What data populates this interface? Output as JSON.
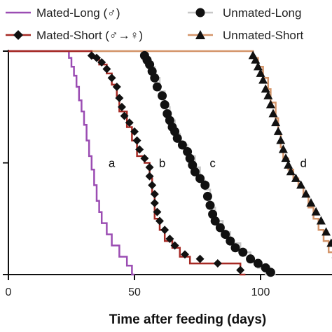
{
  "chart_data": {
    "type": "line",
    "xlabel": "Time after feeding (days)",
    "ylabel": "",
    "xlim": [
      0,
      130
    ],
    "ylim": [
      0,
      1
    ],
    "xticks": [
      "0",
      "50",
      "100"
    ],
    "xtick_values": [
      0,
      50,
      100
    ],
    "ytick_values": [
      0,
      0.5,
      1
    ],
    "legend": {
      "placement": "top",
      "columns": 2
    },
    "series": [
      {
        "name": "Mated-Long (♂)",
        "color": "#9b4db3",
        "marker": "none",
        "steps": [
          [
            0,
            1.0
          ],
          [
            24,
            1.0
          ],
          [
            24,
            0.97
          ],
          [
            25,
            0.97
          ],
          [
            25,
            0.93
          ],
          [
            26,
            0.93
          ],
          [
            26,
            0.89
          ],
          [
            27,
            0.89
          ],
          [
            27,
            0.84
          ],
          [
            28,
            0.84
          ],
          [
            28,
            0.78
          ],
          [
            29,
            0.78
          ],
          [
            29,
            0.73
          ],
          [
            30,
            0.73
          ],
          [
            30,
            0.67
          ],
          [
            31,
            0.67
          ],
          [
            31,
            0.6
          ],
          [
            32,
            0.6
          ],
          [
            32,
            0.53
          ],
          [
            33,
            0.53
          ],
          [
            33,
            0.47
          ],
          [
            34,
            0.47
          ],
          [
            34,
            0.4
          ],
          [
            35,
            0.4
          ],
          [
            35,
            0.33
          ],
          [
            36,
            0.33
          ],
          [
            36,
            0.28
          ],
          [
            37,
            0.28
          ],
          [
            37,
            0.23
          ],
          [
            39,
            0.23
          ],
          [
            39,
            0.18
          ],
          [
            41,
            0.18
          ],
          [
            41,
            0.13
          ],
          [
            44,
            0.13
          ],
          [
            44,
            0.08
          ],
          [
            47,
            0.08
          ],
          [
            47,
            0.04
          ],
          [
            49,
            0.04
          ],
          [
            49,
            0.0
          ],
          [
            50,
            0.0
          ]
        ],
        "points": []
      },
      {
        "name": "Mated-Short (♂→♀)",
        "color": "#a62a24",
        "marker": "diamond",
        "steps": [
          [
            0,
            1.0
          ],
          [
            33,
            1.0
          ],
          [
            33,
            0.97
          ],
          [
            36,
            0.97
          ],
          [
            36,
            0.94
          ],
          [
            39,
            0.94
          ],
          [
            39,
            0.9
          ],
          [
            41,
            0.9
          ],
          [
            41,
            0.85
          ],
          [
            43,
            0.85
          ],
          [
            43,
            0.8
          ],
          [
            44,
            0.8
          ],
          [
            44,
            0.73
          ],
          [
            47,
            0.73
          ],
          [
            47,
            0.66
          ],
          [
            49,
            0.66
          ],
          [
            49,
            0.6
          ],
          [
            51,
            0.6
          ],
          [
            51,
            0.53
          ],
          [
            54,
            0.53
          ],
          [
            54,
            0.5
          ],
          [
            56,
            0.5
          ],
          [
            56,
            0.43
          ],
          [
            57,
            0.43
          ],
          [
            57,
            0.36
          ],
          [
            58,
            0.36
          ],
          [
            58,
            0.25
          ],
          [
            60,
            0.25
          ],
          [
            60,
            0.2
          ],
          [
            62,
            0.2
          ],
          [
            62,
            0.15
          ],
          [
            65,
            0.15
          ],
          [
            65,
            0.12
          ],
          [
            68,
            0.12
          ],
          [
            68,
            0.08
          ],
          [
            72,
            0.08
          ],
          [
            72,
            0.05
          ],
          [
            82,
            0.05
          ],
          [
            82,
            0.05
          ],
          [
            92,
            0.05
          ],
          [
            92,
            0.0
          ],
          [
            94,
            0.0
          ]
        ],
        "points": [
          [
            33,
            0.98
          ],
          [
            35,
            0.97
          ],
          [
            37,
            0.95
          ],
          [
            39,
            0.92
          ],
          [
            41,
            0.88
          ],
          [
            43,
            0.84
          ],
          [
            44,
            0.79
          ],
          [
            45,
            0.75
          ],
          [
            46,
            0.71
          ],
          [
            48,
            0.68
          ],
          [
            50,
            0.64
          ],
          [
            51,
            0.6
          ],
          [
            52,
            0.56
          ],
          [
            54,
            0.52
          ],
          [
            56,
            0.48
          ],
          [
            56,
            0.44
          ],
          [
            57,
            0.4
          ],
          [
            58,
            0.36
          ],
          [
            58,
            0.32
          ],
          [
            59,
            0.28
          ],
          [
            60,
            0.24
          ],
          [
            62,
            0.2
          ],
          [
            64,
            0.16
          ],
          [
            66,
            0.13
          ],
          [
            70,
            0.09
          ],
          [
            76,
            0.07
          ],
          [
            83,
            0.05
          ],
          [
            92,
            0.02
          ]
        ]
      },
      {
        "name": "Unmated-Long",
        "color": "#c8c8c8",
        "marker": "circle",
        "steps": [
          [
            0,
            1.0
          ],
          [
            54,
            1.0
          ],
          [
            54,
            0.97
          ],
          [
            56,
            0.97
          ],
          [
            56,
            0.93
          ],
          [
            58,
            0.93
          ],
          [
            58,
            0.88
          ],
          [
            60,
            0.88
          ],
          [
            60,
            0.82
          ],
          [
            62,
            0.82
          ],
          [
            62,
            0.75
          ],
          [
            64,
            0.75
          ],
          [
            64,
            0.69
          ],
          [
            66,
            0.69
          ],
          [
            66,
            0.63
          ],
          [
            68,
            0.63
          ],
          [
            68,
            0.58
          ],
          [
            71,
            0.58
          ],
          [
            71,
            0.53
          ],
          [
            74,
            0.53
          ],
          [
            74,
            0.48
          ],
          [
            76,
            0.48
          ],
          [
            76,
            0.42
          ],
          [
            78,
            0.42
          ],
          [
            78,
            0.38
          ],
          [
            80,
            0.38
          ],
          [
            80,
            0.3
          ],
          [
            82,
            0.3
          ],
          [
            82,
            0.24
          ],
          [
            85,
            0.24
          ],
          [
            85,
            0.19
          ],
          [
            88,
            0.19
          ],
          [
            88,
            0.14
          ],
          [
            92,
            0.14
          ],
          [
            92,
            0.1
          ],
          [
            96,
            0.1
          ],
          [
            96,
            0.06
          ],
          [
            99,
            0.06
          ],
          [
            99,
            0.03
          ],
          [
            102,
            0.03
          ],
          [
            102,
            0.0
          ],
          [
            106,
            0.0
          ]
        ],
        "points": [
          [
            54,
            0.98
          ],
          [
            55,
            0.96
          ],
          [
            56,
            0.94
          ],
          [
            57,
            0.91
          ],
          [
            58,
            0.88
          ],
          [
            59,
            0.84
          ],
          [
            61,
            0.8
          ],
          [
            62,
            0.76
          ],
          [
            63,
            0.72
          ],
          [
            64,
            0.69
          ],
          [
            65,
            0.66
          ],
          [
            66,
            0.64
          ],
          [
            67,
            0.61
          ],
          [
            69,
            0.58
          ],
          [
            71,
            0.55
          ],
          [
            72,
            0.52
          ],
          [
            73,
            0.49
          ],
          [
            74,
            0.46
          ],
          [
            76,
            0.43
          ],
          [
            78,
            0.4
          ],
          [
            79,
            0.35
          ],
          [
            80,
            0.31
          ],
          [
            81,
            0.27
          ],
          [
            82,
            0.24
          ],
          [
            84,
            0.21
          ],
          [
            86,
            0.18
          ],
          [
            88,
            0.15
          ],
          [
            90,
            0.12
          ],
          [
            93,
            0.1
          ],
          [
            96,
            0.07
          ],
          [
            99,
            0.05
          ],
          [
            102,
            0.03
          ],
          [
            104,
            0.01
          ]
        ]
      },
      {
        "name": "Unmated-Short",
        "color": "#d4956a",
        "marker": "triangle",
        "steps": [
          [
            0,
            1.0
          ],
          [
            97,
            1.0
          ],
          [
            97,
            0.97
          ],
          [
            99,
            0.97
          ],
          [
            99,
            0.93
          ],
          [
            101,
            0.93
          ],
          [
            101,
            0.88
          ],
          [
            103,
            0.88
          ],
          [
            103,
            0.83
          ],
          [
            104,
            0.83
          ],
          [
            104,
            0.77
          ],
          [
            106,
            0.77
          ],
          [
            106,
            0.7
          ],
          [
            107,
            0.7
          ],
          [
            107,
            0.63
          ],
          [
            108,
            0.63
          ],
          [
            108,
            0.57
          ],
          [
            109,
            0.57
          ],
          [
            109,
            0.52
          ],
          [
            111,
            0.52
          ],
          [
            111,
            0.47
          ],
          [
            113,
            0.47
          ],
          [
            113,
            0.43
          ],
          [
            115,
            0.43
          ],
          [
            115,
            0.39
          ],
          [
            117,
            0.39
          ],
          [
            117,
            0.35
          ],
          [
            119,
            0.35
          ],
          [
            119,
            0.3
          ],
          [
            121,
            0.3
          ],
          [
            121,
            0.25
          ],
          [
            123,
            0.25
          ],
          [
            123,
            0.2
          ],
          [
            125,
            0.2
          ],
          [
            125,
            0.15
          ],
          [
            127,
            0.15
          ],
          [
            127,
            0.1
          ],
          [
            129,
            0.1
          ],
          [
            129,
            0.05
          ],
          [
            131,
            0.05
          ]
        ],
        "points": [
          [
            97,
            0.98
          ],
          [
            98,
            0.96
          ],
          [
            99,
            0.93
          ],
          [
            100,
            0.9
          ],
          [
            101,
            0.87
          ],
          [
            102,
            0.83
          ],
          [
            103,
            0.8
          ],
          [
            104,
            0.76
          ],
          [
            105,
            0.72
          ],
          [
            106,
            0.68
          ],
          [
            107,
            0.64
          ],
          [
            108,
            0.6
          ],
          [
            109,
            0.56
          ],
          [
            110,
            0.52
          ],
          [
            111,
            0.49
          ],
          [
            112,
            0.46
          ],
          [
            114,
            0.43
          ],
          [
            116,
            0.4
          ],
          [
            118,
            0.36
          ],
          [
            120,
            0.32
          ],
          [
            122,
            0.28
          ],
          [
            124,
            0.24
          ],
          [
            126,
            0.19
          ],
          [
            128,
            0.14
          ],
          [
            130,
            0.09
          ],
          [
            132,
            0.05
          ]
        ]
      }
    ],
    "annotations": [
      {
        "text": "a",
        "x": 41,
        "y": 0.5
      },
      {
        "text": "b",
        "x": 61,
        "y": 0.5
      },
      {
        "text": "c",
        "x": 81,
        "y": 0.5
      },
      {
        "text": "d",
        "x": 117,
        "y": 0.5
      }
    ]
  }
}
